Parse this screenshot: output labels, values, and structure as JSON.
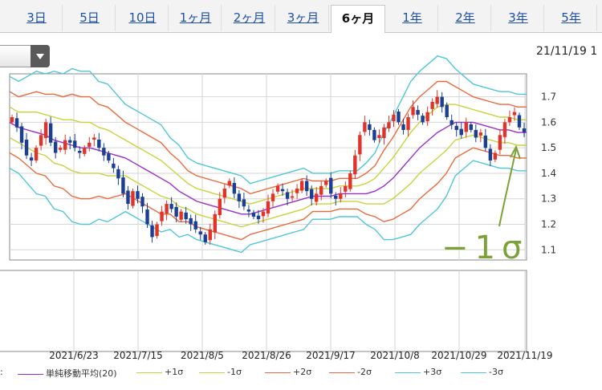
{
  "tabs": [
    {
      "label": "3日",
      "active": false
    },
    {
      "label": "5日",
      "active": false
    },
    {
      "label": "10日",
      "active": false
    },
    {
      "label": "1ヶ月",
      "active": false
    },
    {
      "label": "2ヶ月",
      "active": false
    },
    {
      "label": "3ヶ月",
      "active": false
    },
    {
      "label": "6ヶ月",
      "active": true
    },
    {
      "label": "1年",
      "active": false
    },
    {
      "label": "2年",
      "active": false
    },
    {
      "label": "3年",
      "active": false
    },
    {
      "label": "5年",
      "active": false
    }
  ],
  "header": {
    "datetime": "21/11/19 1"
  },
  "annotation": {
    "label": "−1σ",
    "color": "#7aa236"
  },
  "colors": {
    "up": "#e0342a",
    "down": "#1b3f93",
    "sma": "#9a2fc7",
    "s1": "#c7d33b",
    "s2": "#ea6a3c",
    "s3": "#4fc6d8"
  },
  "legend": [
    {
      "label": "単純移動平均(20)",
      "color": "#9a2fc7"
    },
    {
      "label": "+1σ",
      "color": "#c7d33b"
    },
    {
      "label": "-1σ",
      "color": "#c7d33b"
    },
    {
      "label": "+2σ",
      "color": "#ea6a3c"
    },
    {
      "label": "-2σ",
      "color": "#ea6a3c"
    },
    {
      "label": "+3σ",
      "color": "#4fc6d8"
    },
    {
      "label": "-3σ",
      "color": "#4fc6d8"
    }
  ],
  "chart_data": {
    "type": "candlestick",
    "yticks": [
      "1.7",
      "1.6",
      "1.5",
      "1.4",
      "1.3",
      "1.2",
      "1.1"
    ],
    "ylim": [
      1.06,
      1.79
    ],
    "xticks": [
      "2021/6/23",
      "2021/7/15",
      "2021/8/5",
      "2021/8/26",
      "2021/9/17",
      "2021/10/8",
      "2021/10/29",
      "2021/11/19"
    ],
    "close": [
      1.62,
      1.58,
      1.52,
      1.47,
      1.45,
      1.5,
      1.55,
      1.6,
      1.52,
      1.48,
      1.5,
      1.53,
      1.52,
      1.5,
      1.48,
      1.5,
      1.52,
      1.54,
      1.5,
      1.47,
      1.45,
      1.42,
      1.38,
      1.32,
      1.28,
      1.33,
      1.3,
      1.27,
      1.2,
      1.15,
      1.2,
      1.25,
      1.28,
      1.26,
      1.23,
      1.25,
      1.22,
      1.2,
      1.18,
      1.16,
      1.13,
      1.18,
      1.24,
      1.3,
      1.34,
      1.37,
      1.32,
      1.29,
      1.27,
      1.25,
      1.23,
      1.22,
      1.25,
      1.29,
      1.32,
      1.35,
      1.33,
      1.3,
      1.31,
      1.34,
      1.37,
      1.33,
      1.3,
      1.32,
      1.35,
      1.37,
      1.32,
      1.3,
      1.32,
      1.35,
      1.4,
      1.47,
      1.55,
      1.6,
      1.57,
      1.53,
      1.55,
      1.58,
      1.6,
      1.63,
      1.6,
      1.57,
      1.62,
      1.66,
      1.63,
      1.6,
      1.64,
      1.68,
      1.7,
      1.66,
      1.62,
      1.59,
      1.57,
      1.55,
      1.6,
      1.57,
      1.54,
      1.56,
      1.5,
      1.45,
      1.48,
      1.55,
      1.6,
      1.62,
      1.64,
      1.58,
      1.56
    ],
    "sma": [
      1.6,
      1.58,
      1.57,
      1.56,
      1.55,
      1.53,
      1.52,
      1.51,
      1.5,
      1.5,
      1.49,
      1.48,
      1.47,
      1.46,
      1.44,
      1.42,
      1.4,
      1.38,
      1.36,
      1.33,
      1.31,
      1.29,
      1.28,
      1.27,
      1.26,
      1.25,
      1.24,
      1.24,
      1.25,
      1.26,
      1.27,
      1.28,
      1.29,
      1.3,
      1.31,
      1.31,
      1.31,
      1.32,
      1.32,
      1.32,
      1.32,
      1.33,
      1.35,
      1.38,
      1.42,
      1.46,
      1.5,
      1.53,
      1.56,
      1.58,
      1.6,
      1.6,
      1.6,
      1.59,
      1.58,
      1.57,
      1.57,
      1.56,
      1.56
    ],
    "sigma": [
      0.06,
      0.06,
      0.07,
      0.08,
      0.08,
      0.09,
      0.09,
      0.1,
      0.1,
      0.1,
      0.09,
      0.09,
      0.08,
      0.07,
      0.07,
      0.07,
      0.07,
      0.07,
      0.06,
      0.06,
      0.05,
      0.05,
      0.05,
      0.05,
      0.05,
      0.05,
      0.05,
      0.04,
      0.04,
      0.04,
      0.04,
      0.04,
      0.04,
      0.04,
      0.03,
      0.03,
      0.03,
      0.03,
      0.03,
      0.03,
      0.04,
      0.05,
      0.07,
      0.08,
      0.09,
      0.1,
      0.1,
      0.1,
      0.1,
      0.09,
      0.07,
      0.06,
      0.05,
      0.05,
      0.05,
      0.05,
      0.05,
      0.05,
      0.05
    ]
  }
}
